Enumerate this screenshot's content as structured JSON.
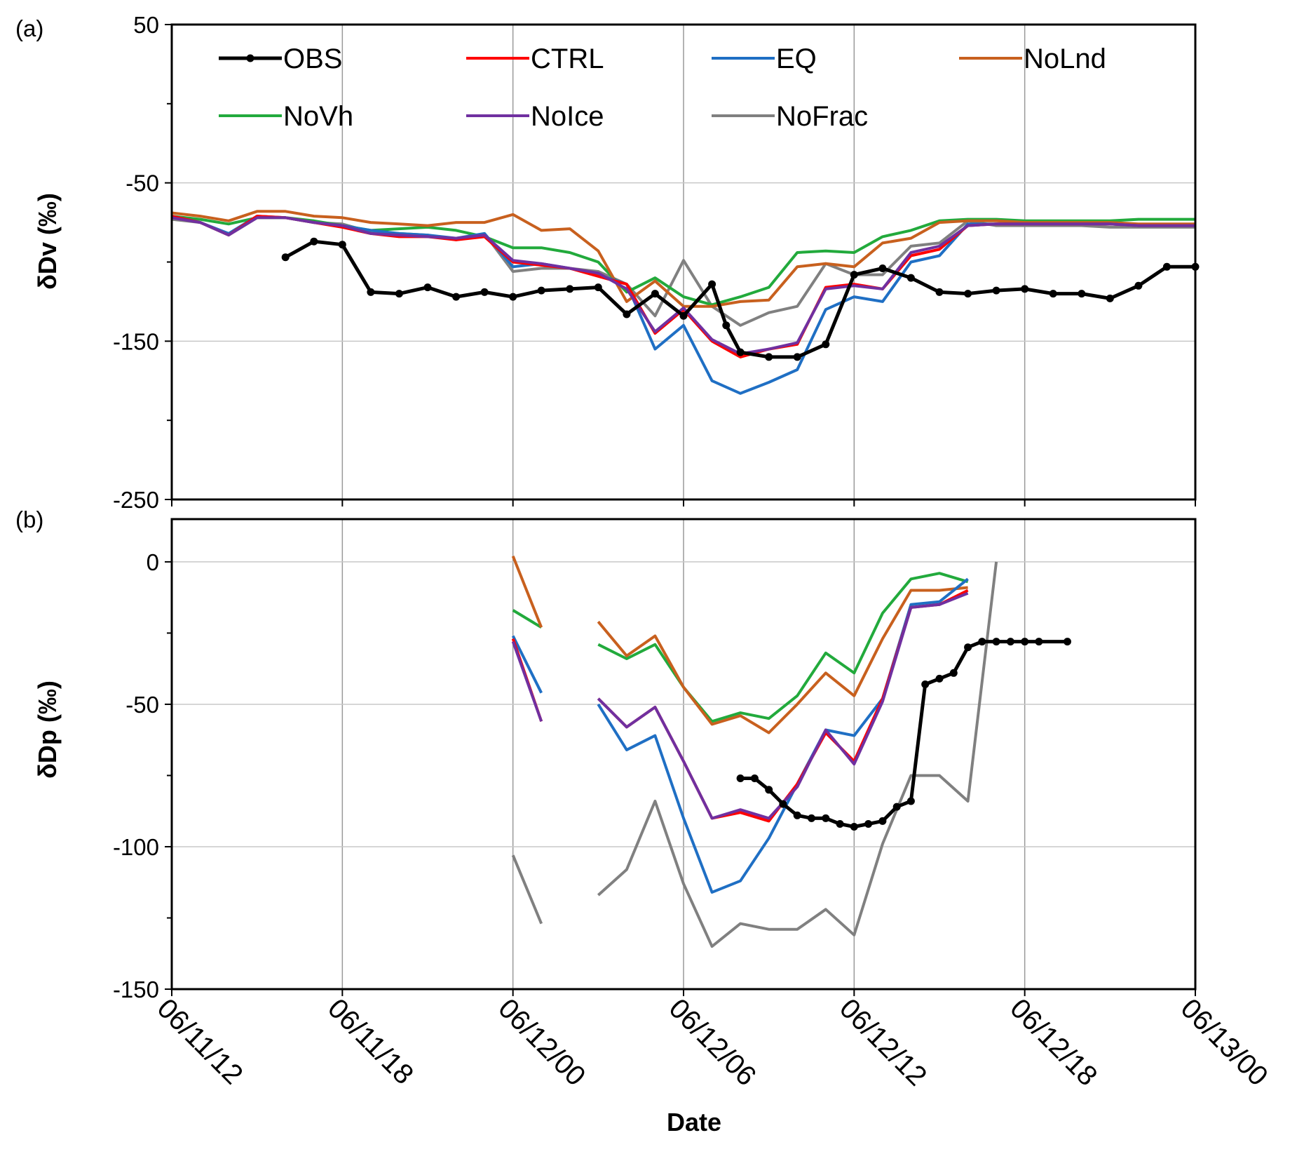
{
  "xaxis": {
    "title": "Date",
    "tick_labels": [
      "06/11/12",
      "06/11/18",
      "06/12/00",
      "06/12/06",
      "06/12/12",
      "06/12/18",
      "06/13/00"
    ],
    "range_hours": [
      0,
      36
    ]
  },
  "legend_order": [
    "OBS",
    "CTRL",
    "EQ",
    "NoLnd",
    "NoVh",
    "NoIce",
    "NoFrac"
  ],
  "colors": {
    "OBS": "#000000",
    "CTRL": "#ff0000",
    "EQ": "#1f6fc4",
    "NoLnd": "#c8601e",
    "NoVh": "#22aa3c",
    "NoIce": "#7030a0",
    "NoFrac": "#808080"
  },
  "chart_data": [
    {
      "type": "line",
      "panel_label": "(a)",
      "ylabel": "δDv (‰)",
      "ylim": [
        -250,
        50
      ],
      "yticks": [
        -250,
        -150,
        -50,
        50
      ],
      "grid": true,
      "legend": "top",
      "x_unit": "hours since 06/11/12",
      "series": [
        {
          "name": "OBS",
          "x": [
            4,
            5,
            6,
            7,
            8,
            9,
            10,
            11,
            12,
            13,
            14,
            15,
            16,
            17,
            18,
            19,
            19.5,
            20,
            21,
            22,
            23,
            24,
            25,
            26,
            27,
            28,
            29,
            30,
            31,
            32,
            33,
            34,
            35,
            36
          ],
          "y": [
            -97,
            -87,
            -89,
            -119,
            -120,
            -116,
            -122,
            -119,
            -122,
            -118,
            -117,
            -116,
            -133,
            -120,
            -134,
            -114,
            -140,
            -157,
            -160,
            -160,
            -152,
            -108,
            -104,
            -110,
            -119,
            -120,
            -118,
            -117,
            -120,
            -120,
            -123,
            -115,
            -103,
            -103
          ]
        },
        {
          "name": "CTRL",
          "x": [
            0,
            1,
            2,
            3,
            4,
            5,
            6,
            7,
            8,
            9,
            10,
            11,
            12,
            13,
            14,
            15,
            16,
            17,
            18,
            19,
            20,
            21,
            22,
            23,
            24,
            25,
            26,
            27,
            28,
            29,
            30,
            31,
            32,
            33,
            34,
            35,
            36
          ],
          "y": [
            -71,
            -75,
            -83,
            -71,
            -72,
            -75,
            -78,
            -82,
            -84,
            -84,
            -86,
            -84,
            -100,
            -102,
            -104,
            -109,
            -114,
            -145,
            -130,
            -150,
            -160,
            -155,
            -152,
            -116,
            -114,
            -117,
            -96,
            -92,
            -77,
            -76,
            -76,
            -76,
            -76,
            -76,
            -77,
            -77,
            -77
          ]
        },
        {
          "name": "EQ",
          "x": [
            0,
            1,
            2,
            3,
            4,
            5,
            6,
            7,
            8,
            9,
            10,
            11,
            12,
            13,
            14,
            15,
            16,
            17,
            18,
            19,
            20,
            21,
            22,
            23,
            24,
            25,
            26,
            27,
            28,
            29,
            30,
            31,
            32,
            33,
            34,
            35,
            36
          ],
          "y": [
            -71,
            -75,
            -82,
            -71,
            -72,
            -75,
            -77,
            -80,
            -82,
            -83,
            -85,
            -82,
            -103,
            -101,
            -104,
            -108,
            -114,
            -155,
            -140,
            -175,
            -183,
            -176,
            -168,
            -130,
            -122,
            -125,
            -100,
            -96,
            -76,
            -76,
            -76,
            -76,
            -76,
            -76,
            -77,
            -77,
            -77
          ]
        },
        {
          "name": "NoLnd",
          "x": [
            0,
            1,
            2,
            3,
            4,
            5,
            6,
            7,
            8,
            9,
            10,
            11,
            12,
            13,
            14,
            15,
            16,
            17,
            18,
            19,
            20,
            21,
            22,
            23,
            24,
            25,
            26,
            27,
            28,
            29,
            30,
            31,
            32,
            33,
            34,
            35,
            36
          ],
          "y": [
            -69,
            -71,
            -74,
            -68,
            -68,
            -71,
            -72,
            -75,
            -76,
            -77,
            -75,
            -75,
            -70,
            -80,
            -79,
            -93,
            -125,
            -112,
            -128,
            -128,
            -125,
            -124,
            -103,
            -101,
            -103,
            -88,
            -85,
            -75,
            -74,
            -74,
            -75,
            -75,
            -75,
            -75,
            -76,
            -76,
            -76
          ]
        },
        {
          "name": "NoVh",
          "x": [
            0,
            1,
            2,
            3,
            4,
            5,
            6,
            7,
            8,
            9,
            10,
            11,
            12,
            13,
            14,
            15,
            16,
            17,
            18,
            19,
            20,
            21,
            22,
            23,
            24,
            25,
            26,
            27,
            28,
            29,
            30,
            31,
            32,
            33,
            34,
            35,
            36
          ],
          "y": [
            -71,
            -73,
            -76,
            -72,
            -72,
            -74,
            -77,
            -80,
            -79,
            -78,
            -80,
            -84,
            -91,
            -91,
            -94,
            -100,
            -119,
            -110,
            -122,
            -127,
            -122,
            -116,
            -94,
            -93,
            -94,
            -84,
            -80,
            -74,
            -73,
            -73,
            -74,
            -74,
            -74,
            -74,
            -73,
            -73,
            -73
          ]
        },
        {
          "name": "NoIce",
          "x": [
            0,
            1,
            2,
            3,
            4,
            5,
            6,
            7,
            8,
            9,
            10,
            11,
            12,
            13,
            14,
            15,
            16,
            17,
            18,
            19,
            20,
            21,
            22,
            23,
            24,
            25,
            26,
            27,
            28,
            29,
            30,
            31,
            32,
            33,
            34,
            35,
            36
          ],
          "y": [
            -72,
            -75,
            -83,
            -72,
            -72,
            -75,
            -77,
            -82,
            -83,
            -84,
            -85,
            -83,
            -99,
            -101,
            -104,
            -107,
            -117,
            -144,
            -129,
            -149,
            -158,
            -155,
            -151,
            -117,
            -115,
            -117,
            -94,
            -90,
            -77,
            -76,
            -76,
            -76,
            -76,
            -76,
            -77,
            -77,
            -77
          ]
        },
        {
          "name": "NoFrac",
          "x": [
            0,
            1,
            2,
            3,
            4,
            5,
            6,
            7,
            8,
            9,
            10,
            11,
            12,
            13,
            14,
            15,
            16,
            17,
            18,
            19,
            20,
            21,
            22,
            23,
            24,
            25,
            26,
            27,
            28,
            29,
            30,
            31,
            32,
            33,
            34,
            35,
            36
          ],
          "y": [
            -73,
            -75,
            -83,
            -72,
            -72,
            -75,
            -76,
            -81,
            -82,
            -83,
            -86,
            -82,
            -106,
            -104,
            -104,
            -106,
            -114,
            -134,
            -99,
            -128,
            -140,
            -132,
            -128,
            -101,
            -108,
            -108,
            -90,
            -88,
            -74,
            -77,
            -77,
            -77,
            -77,
            -78,
            -78,
            -78,
            -78
          ]
        }
      ]
    },
    {
      "type": "line",
      "panel_label": "(b)",
      "ylabel": "δDp (‰)",
      "ylim": [
        -150,
        15
      ],
      "yticks": [
        -150,
        -100,
        -50,
        0
      ],
      "grid": true,
      "x_unit": "hours since 06/11/12",
      "series": [
        {
          "name": "OBS",
          "segments": [
            {
              "x": [
                20,
                20.5,
                21,
                21.5,
                22,
                22.5,
                23,
                23.5,
                24,
                24.5,
                25,
                25.5,
                26,
                26.5,
                27,
                27.5,
                28,
                28.5,
                29,
                29.5,
                30,
                30.5,
                31.5
              ],
              "y": [
                -76,
                -76,
                -80,
                -85,
                -89,
                -90,
                -90,
                -92,
                -93,
                -92,
                -91,
                -86,
                -84,
                -43,
                -41,
                -39,
                -30,
                -28,
                -28,
                -28,
                -28,
                -28,
                -28
              ]
            }
          ]
        },
        {
          "name": "CTRL",
          "segments": [
            {
              "x": [
                12,
                13
              ],
              "y": [
                -27,
                -56
              ]
            },
            {
              "x": [
                15,
                16,
                17,
                18,
                19,
                20,
                21,
                22,
                23,
                24,
                25,
                26,
                27,
                28
              ],
              "y": [
                -48,
                -58,
                -51,
                -70,
                -90,
                -88,
                -91,
                -78,
                -60,
                -70,
                -48,
                -16,
                -15,
                -10
              ]
            }
          ]
        },
        {
          "name": "EQ",
          "segments": [
            {
              "x": [
                12,
                13
              ],
              "y": [
                -26,
                -46
              ]
            },
            {
              "x": [
                15,
                16,
                17,
                18,
                19,
                20,
                21,
                22,
                23,
                24,
                25,
                26,
                27,
                28
              ],
              "y": [
                -50,
                -66,
                -61,
                -90,
                -116,
                -112,
                -97,
                -78,
                -59,
                -61,
                -48,
                -15,
                -14,
                -6
              ]
            }
          ]
        },
        {
          "name": "NoLnd",
          "segments": [
            {
              "x": [
                12,
                13
              ],
              "y": [
                2,
                -23
              ]
            },
            {
              "x": [
                15,
                16,
                17,
                18,
                19,
                20,
                21,
                22,
                23,
                24,
                25,
                26,
                27,
                28
              ],
              "y": [
                -21,
                -33,
                -26,
                -44,
                -57,
                -54,
                -60,
                -50,
                -39,
                -47,
                -27,
                -10,
                -10,
                -9
              ]
            }
          ]
        },
        {
          "name": "NoVh",
          "segments": [
            {
              "x": [
                12,
                13
              ],
              "y": [
                -17,
                -23
              ]
            },
            {
              "x": [
                15,
                16,
                17,
                18,
                19,
                20,
                21,
                22,
                23,
                24,
                25,
                26,
                27,
                28
              ],
              "y": [
                -29,
                -34,
                -29,
                -44,
                -56,
                -53,
                -55,
                -47,
                -32,
                -39,
                -18,
                -6,
                -4,
                -7
              ]
            }
          ]
        },
        {
          "name": "NoIce",
          "segments": [
            {
              "x": [
                12,
                13
              ],
              "y": [
                -28,
                -56
              ]
            },
            {
              "x": [
                15,
                16,
                17,
                18,
                19,
                20,
                21,
                22,
                23,
                24,
                25,
                26,
                27,
                28
              ],
              "y": [
                -48,
                -58,
                -51,
                -70,
                -90,
                -87,
                -90,
                -79,
                -59,
                -71,
                -49,
                -16,
                -15,
                -11
              ]
            }
          ]
        },
        {
          "name": "NoFrac",
          "segments": [
            {
              "x": [
                12,
                13
              ],
              "y": [
                -103,
                -127
              ]
            },
            {
              "x": [
                15,
                16,
                17,
                18,
                19,
                20,
                21,
                22,
                23,
                24,
                25,
                26,
                27,
                28,
                29
              ],
              "y": [
                -117,
                -108,
                -84,
                -113,
                -135,
                -127,
                -129,
                -129,
                -122,
                -131,
                -99,
                -75,
                -75,
                -84,
                0
              ]
            }
          ]
        }
      ]
    }
  ]
}
